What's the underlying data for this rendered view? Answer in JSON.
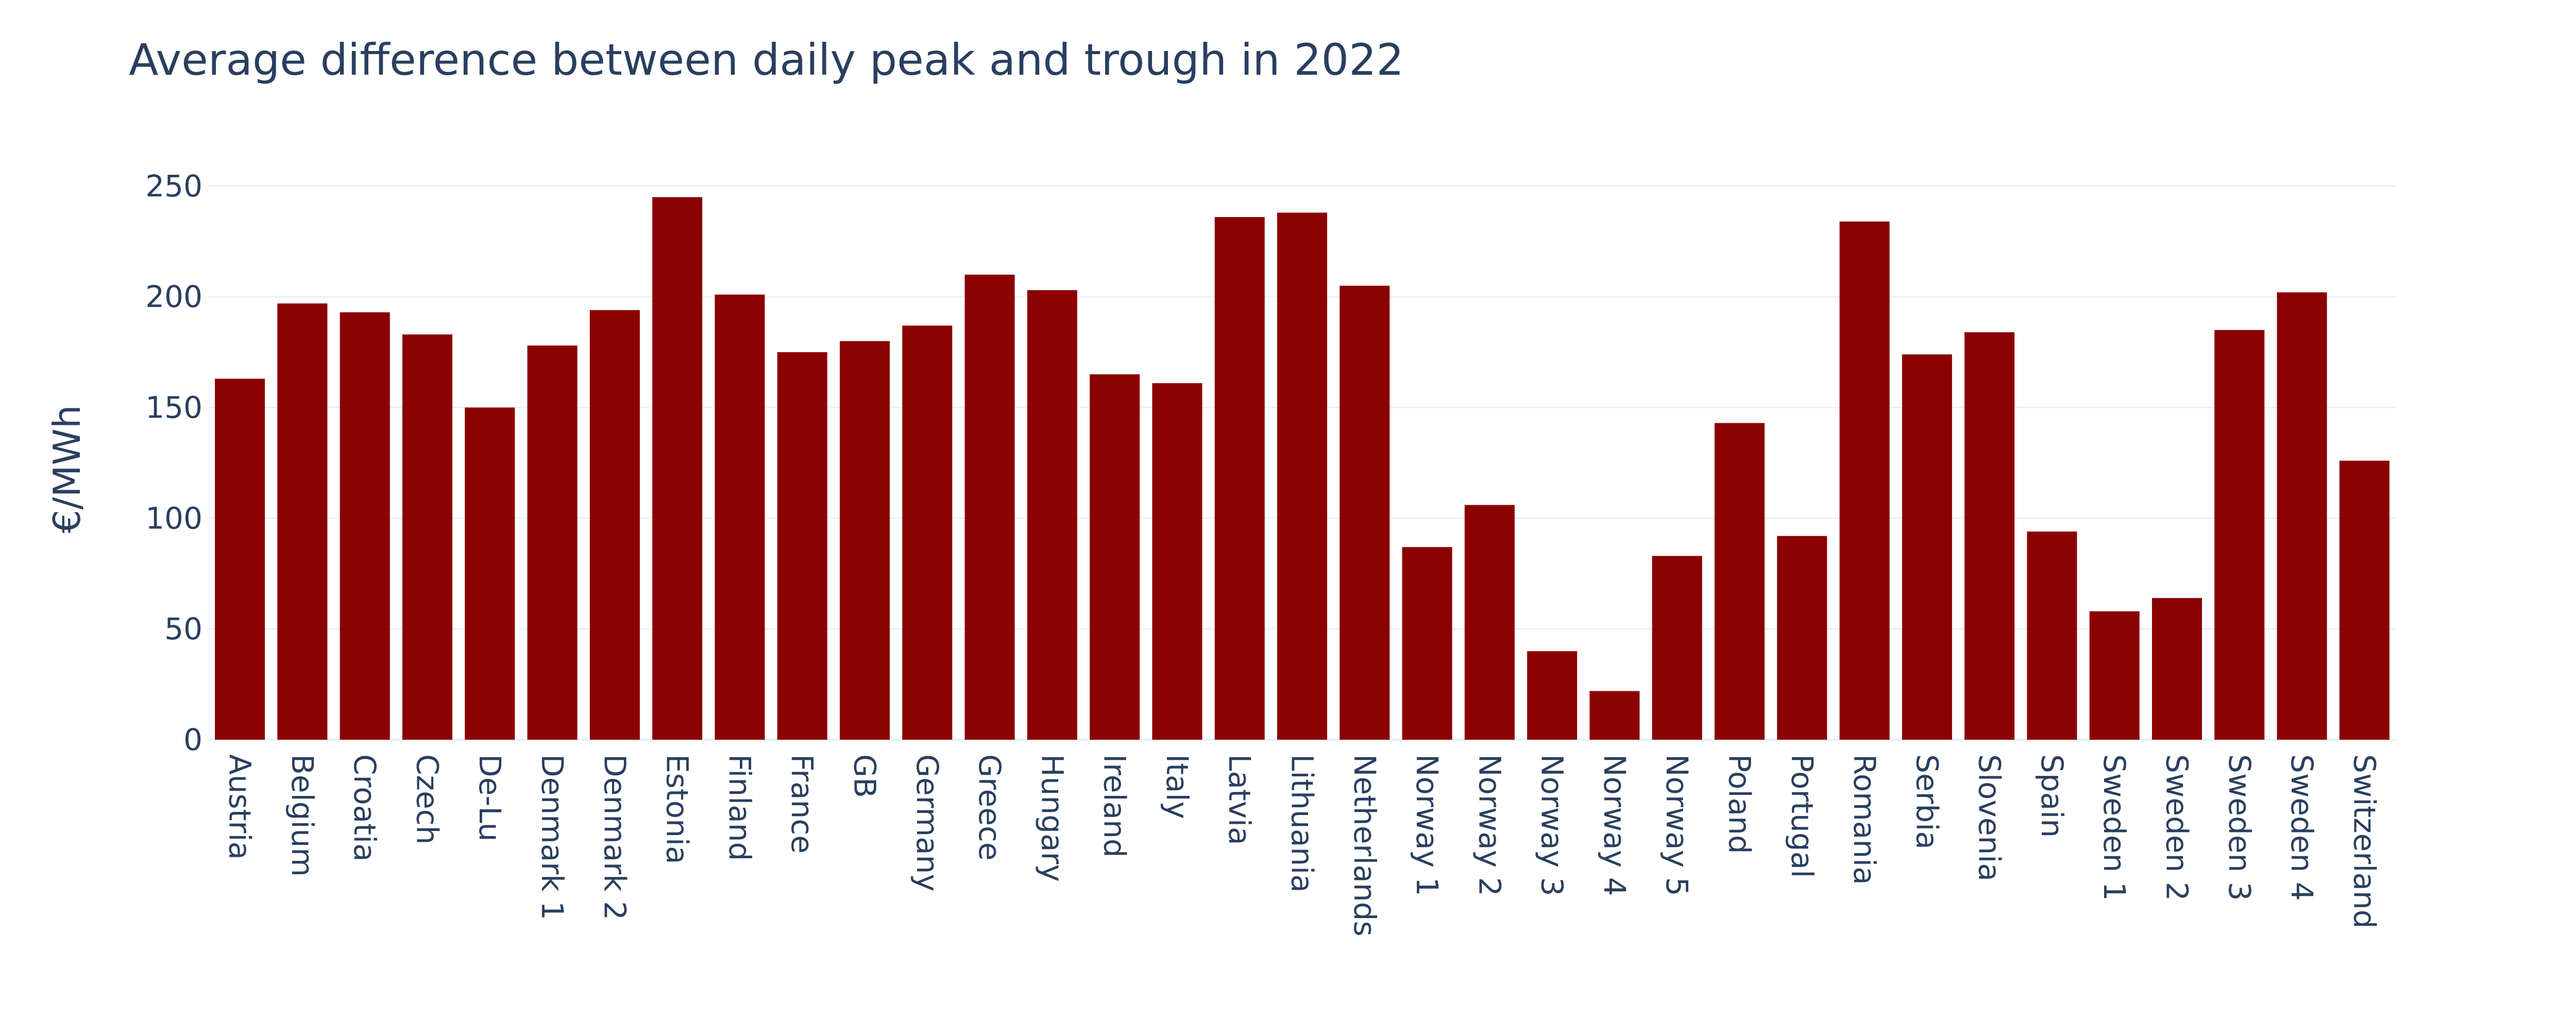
{
  "chart_data": {
    "type": "bar",
    "title": "Average difference between daily peak and trough in 2022",
    "xlabel": "",
    "ylabel": "€/MWh",
    "ylim": [
      0,
      270
    ],
    "yticks": [
      0,
      50,
      100,
      150,
      200,
      250
    ],
    "grid": true,
    "bar_color": "#8b0000",
    "categories": [
      "Austria",
      "Belgium",
      "Croatia",
      "Czech",
      "De-Lu",
      "Denmark 1",
      "Denmark 2",
      "Estonia",
      "Finland",
      "France",
      "GB",
      "Germany",
      "Greece",
      "Hungary",
      "Ireland",
      "Italy",
      "Latvia",
      "Lithuania",
      "Netherlands",
      "Norway 1",
      "Norway 2",
      "Norway 3",
      "Norway 4",
      "Norway 5",
      "Poland",
      "Portugal",
      "Romania",
      "Serbia",
      "Slovenia",
      "Spain",
      "Sweden 1",
      "Sweden 2",
      "Sweden 3",
      "Sweden 4",
      "Switzerland"
    ],
    "values": [
      163,
      197,
      193,
      183,
      150,
      178,
      194,
      245,
      201,
      175,
      180,
      187,
      210,
      203,
      165,
      161,
      236,
      238,
      205,
      87,
      106,
      40,
      22,
      83,
      143,
      92,
      234,
      174,
      184,
      94,
      58,
      64,
      185,
      202,
      126
    ]
  }
}
